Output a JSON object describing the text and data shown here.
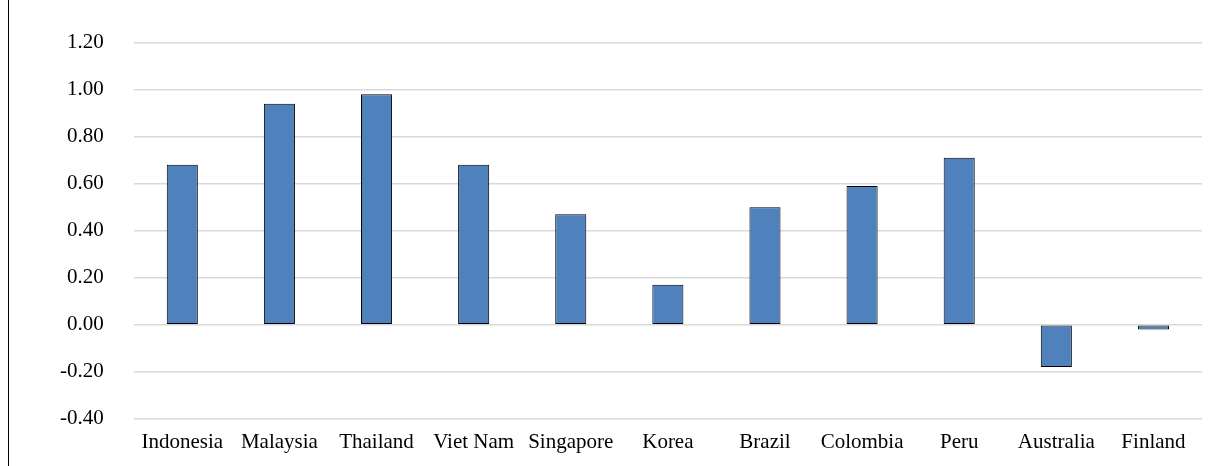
{
  "chart_data": {
    "type": "bar",
    "categories": [
      "Indonesia",
      "Malaysia",
      "Thailand",
      "Viet Nam",
      "Singapore",
      "Korea",
      "Brazil",
      "Colombia",
      "Peru",
      "Australia",
      "Finland"
    ],
    "values": [
      0.68,
      0.94,
      0.98,
      0.68,
      0.47,
      0.17,
      0.5,
      0.59,
      0.71,
      -0.18,
      -0.02
    ],
    "color": "#4f81bd",
    "ylim": [
      -0.4,
      1.2
    ],
    "yticks": [
      {
        "value": -0.4,
        "label": "-0.40"
      },
      {
        "value": -0.2,
        "label": "-0.20"
      },
      {
        "value": 0,
        "label": "0.00"
      },
      {
        "value": 0.2,
        "label": "0.20"
      },
      {
        "value": 0.4,
        "label": "0.40"
      },
      {
        "value": 0.6,
        "label": "0.60"
      },
      {
        "value": 0.8,
        "label": "0.80"
      },
      {
        "value": 1.0,
        "label": "1.00"
      },
      {
        "value": 1.2,
        "label": "1.20"
      }
    ],
    "grid": "y",
    "legend": false
  }
}
